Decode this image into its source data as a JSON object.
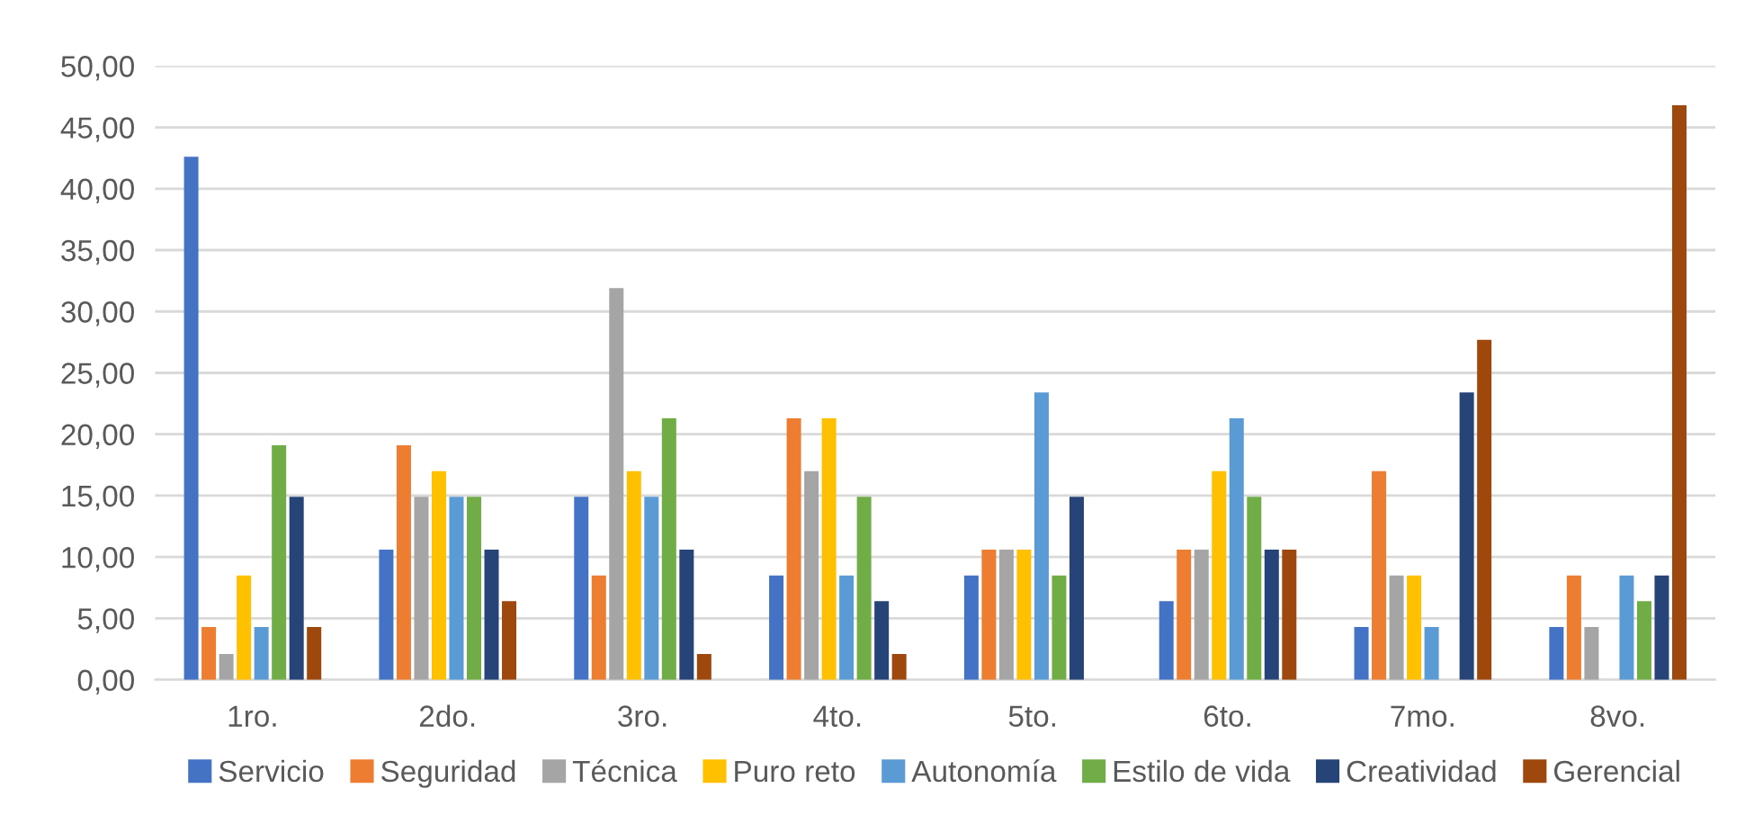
{
  "chart_data": {
    "type": "bar",
    "categories": [
      "1ro.",
      "2do.",
      "3ro.",
      "4to.",
      "5to.",
      "6to.",
      "7mo.",
      "8vo."
    ],
    "series": [
      {
        "name": "Servicio",
        "color": "#4472c4",
        "values": [
          42.6,
          10.6,
          14.9,
          8.5,
          8.5,
          6.4,
          4.3,
          4.3
        ]
      },
      {
        "name": "Seguridad",
        "color": "#ed7d31",
        "values": [
          4.3,
          19.1,
          8.5,
          21.3,
          10.6,
          10.6,
          17.0,
          8.5
        ]
      },
      {
        "name": "Técnica",
        "color": "#a5a5a5",
        "values": [
          2.1,
          14.9,
          31.9,
          17.0,
          10.6,
          10.6,
          8.5,
          4.3
        ]
      },
      {
        "name": "Puro reto",
        "color": "#ffc000",
        "values": [
          8.5,
          17.0,
          17.0,
          21.3,
          10.6,
          17.0,
          8.5,
          0
        ]
      },
      {
        "name": "Autonomía",
        "color": "#5b9bd5",
        "values": [
          4.3,
          14.9,
          14.9,
          8.5,
          23.4,
          21.3,
          4.3,
          8.5
        ]
      },
      {
        "name": "Estilo de vida",
        "color": "#70ad47",
        "values": [
          19.1,
          14.9,
          21.3,
          14.9,
          8.5,
          14.9,
          0,
          6.4
        ]
      },
      {
        "name": "Creatividad",
        "color": "#264478",
        "values": [
          14.9,
          10.6,
          10.6,
          6.4,
          14.9,
          10.6,
          23.4,
          8.5
        ]
      },
      {
        "name": "Gerencial",
        "color": "#9e480e",
        "values": [
          4.3,
          6.4,
          2.1,
          2.1,
          0,
          10.6,
          27.7,
          46.8
        ]
      }
    ],
    "ylim": [
      0,
      50
    ],
    "yticks": [
      {
        "value": 0,
        "label": "0,00"
      },
      {
        "value": 5,
        "label": "5,00"
      },
      {
        "value": 10,
        "label": "10,00"
      },
      {
        "value": 15,
        "label": "15,00"
      },
      {
        "value": 20,
        "label": "20,00"
      },
      {
        "value": 25,
        "label": "25,00"
      },
      {
        "value": 30,
        "label": "30,00"
      },
      {
        "value": 35,
        "label": "35,00"
      },
      {
        "value": 40,
        "label": "40,00"
      },
      {
        "value": 45,
        "label": "45,00"
      },
      {
        "value": 50,
        "label": "50,00"
      }
    ],
    "grid": "y",
    "legend": "bottom"
  }
}
